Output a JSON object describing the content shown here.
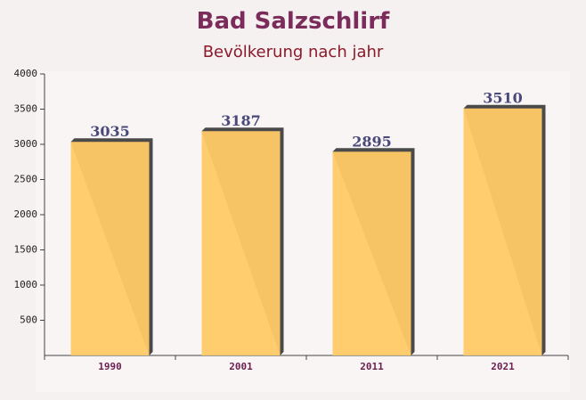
{
  "chart_data": {
    "type": "bar",
    "title": "Bad Salzschlirf",
    "subtitle": "Bevölkerung nach jahr",
    "categories": [
      "1990",
      "2001",
      "2011",
      "2021"
    ],
    "values": [
      3035,
      3187,
      2895,
      3510
    ],
    "color": "#ffc966",
    "ylim": [
      0,
      4000
    ],
    "yticks": [
      500,
      1000,
      1500,
      2000,
      2500,
      3000,
      3500,
      4000
    ],
    "grid": false
  }
}
